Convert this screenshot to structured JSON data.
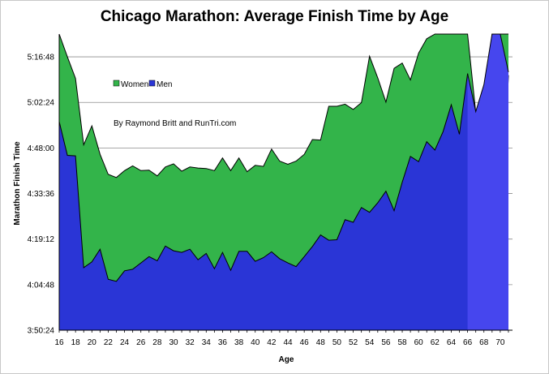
{
  "chart_data": {
    "type": "area",
    "title": "Chicago Marathon: Average Finish Time by Age",
    "xlabel": "Age",
    "ylabel": "Marathon Finish Time",
    "annotation": "By Raymond Britt and RunTri.com",
    "legend_position": "top-left",
    "grid": true,
    "ylim_seconds": [
      13824,
      19440
    ],
    "y_ticks": [
      "3:50:24",
      "4:04:48",
      "4:19:12",
      "4:33:36",
      "4:48:00",
      "5:02:24",
      "5:16:48"
    ],
    "x_ticks": [
      16,
      18,
      20,
      22,
      24,
      26,
      28,
      30,
      32,
      34,
      36,
      38,
      40,
      42,
      44,
      46,
      48,
      50,
      52,
      54,
      56,
      58,
      60,
      62,
      64,
      66,
      68,
      70
    ],
    "x": [
      16,
      17,
      18,
      19,
      20,
      21,
      22,
      23,
      24,
      25,
      26,
      27,
      28,
      29,
      30,
      31,
      32,
      33,
      34,
      35,
      36,
      37,
      38,
      39,
      40,
      41,
      42,
      43,
      44,
      45,
      46,
      47,
      48,
      49,
      50,
      51,
      52,
      53,
      54,
      55,
      56,
      57,
      58,
      59,
      60,
      61,
      62,
      63,
      64,
      65,
      66,
      67,
      68,
      69,
      70,
      71
    ],
    "series": [
      {
        "name": "Women",
        "color": "#33b44a",
        "values": [
          "5:25:00",
          "5:16:48",
          "5:10:00",
          "4:49:00",
          "4:55:00",
          "4:46:00",
          "4:39:40",
          "4:38:40",
          "4:40:50",
          "4:42:20",
          "4:40:50",
          "4:41:00",
          "4:39:10",
          "4:42:00",
          "4:43:00",
          "4:40:40",
          "4:42:00",
          "4:41:40",
          "4:41:30",
          "4:40:50",
          "4:44:50",
          "4:40:50",
          "4:44:50",
          "4:40:30",
          "4:42:30",
          "4:42:10",
          "4:47:40",
          "4:43:50",
          "4:42:50",
          "4:43:50",
          "4:46:00",
          "4:50:40",
          "4:50:30",
          "5:01:10",
          "5:01:10",
          "5:01:50",
          "5:00:10",
          "5:02:20",
          "5:17:00",
          "5:10:10",
          "5:02:30",
          "5:13:10",
          "5:14:50",
          "5:09:30",
          "5:18:00",
          "5:22:30",
          "5:25:00",
          "5:25:00",
          "5:25:00",
          "5:25:00",
          "5:25:00",
          "4:59:10",
          "5:00:00",
          "5:25:00",
          "5:25:00",
          "5:25:00"
        ]
      },
      {
        "name": "Men",
        "color": "#2a35d6",
        "values": [
          "4:56:20",
          "4:45:40",
          "4:45:30",
          "4:10:10",
          "4:12:00",
          "4:16:00",
          "4:06:30",
          "4:05:50",
          "4:09:10",
          "4:09:40",
          "4:11:40",
          "4:13:40",
          "4:12:20",
          "4:17:00",
          "4:15:30",
          "4:15:00",
          "4:16:00",
          "4:12:40",
          "4:14:40",
          "4:09:50",
          "4:15:00",
          "4:09:20",
          "4:15:20",
          "4:15:20",
          "4:12:10",
          "4:13:20",
          "4:15:10",
          "4:13:00",
          "4:11:40",
          "4:10:30",
          "4:13:40",
          "4:16:50",
          "4:20:30",
          "4:18:50",
          "4:19:00",
          "4:25:20",
          "4:24:30",
          "4:29:10",
          "4:27:40",
          "4:30:40",
          "4:34:20",
          "4:28:10",
          "4:37:10",
          "4:45:20",
          "4:43:40",
          "4:50:00",
          "4:47:20",
          "4:53:10",
          "5:01:40",
          "4:52:20",
          "5:11:30",
          "4:41:00",
          "4:28:00",
          "4:56:00",
          "4:16:00",
          "5:11:00"
        ]
      },
      {
        "name": "",
        "color": "#4646ee",
        "x": [
          66,
          67,
          68,
          69,
          70,
          71
        ],
        "values": [
          "5:11:30",
          "4:59:30",
          "5:08:00",
          "5:25:00",
          "5:25:00",
          "5:12:00"
        ]
      }
    ]
  }
}
